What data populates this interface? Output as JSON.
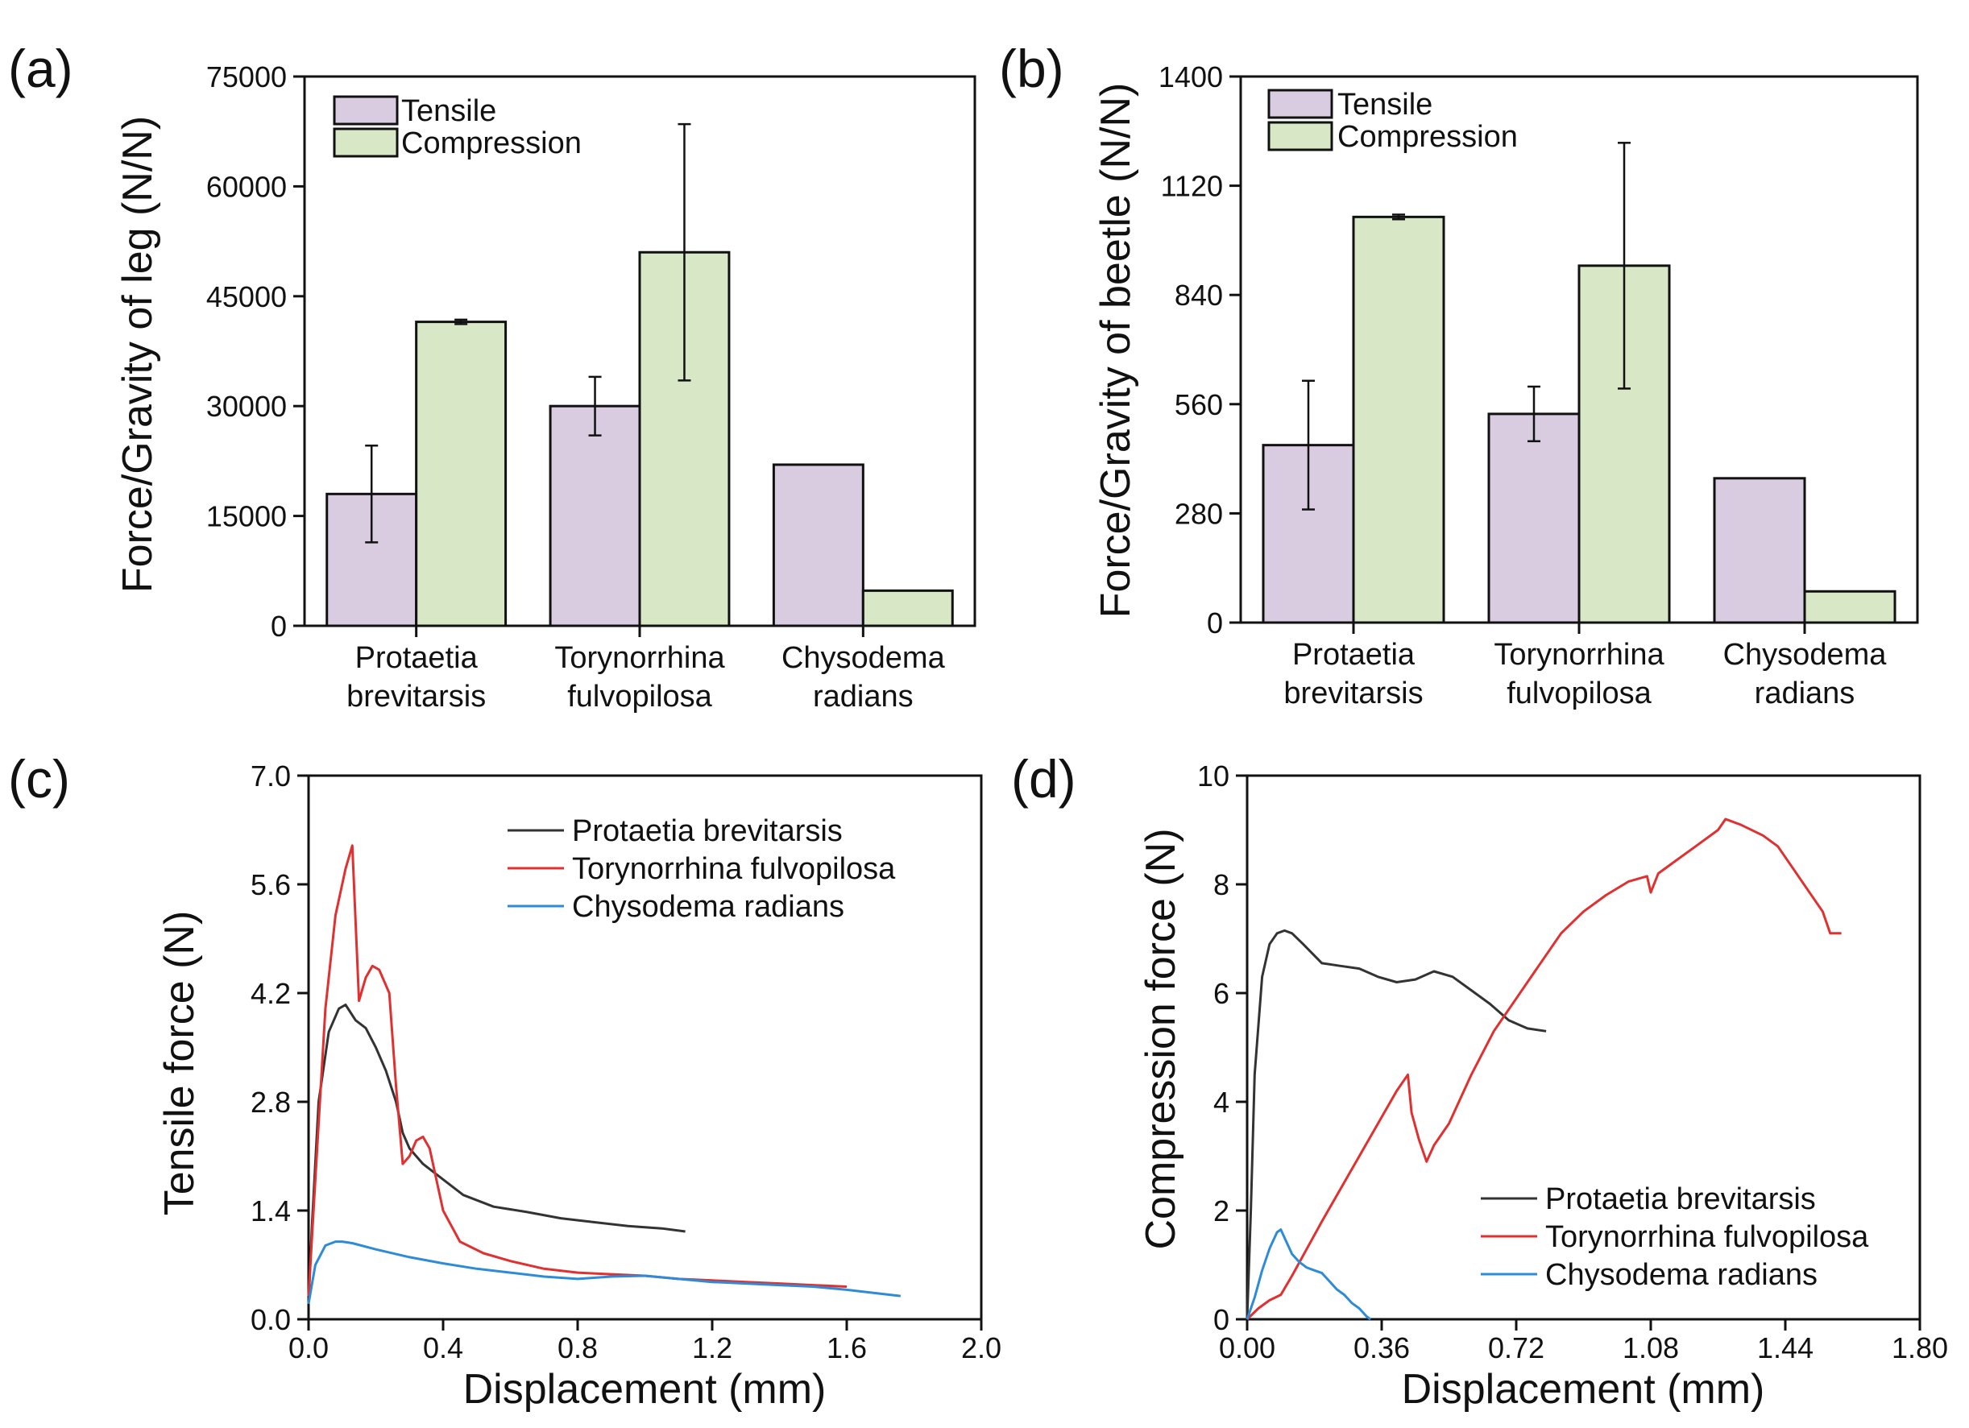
{
  "chart_data": [
    {
      "id": "a",
      "type": "bar",
      "panel_label": "(a)",
      "title": "",
      "ylabel": "Force/Gravity of leg (N/N)",
      "xlabel": "",
      "ylim": [
        0,
        75000
      ],
      "yticks": [
        0,
        15000,
        30000,
        45000,
        60000,
        75000
      ],
      "ytick_labels": [
        "0",
        "15000",
        "30000",
        "45000",
        "60000",
        "75000"
      ],
      "categories": [
        {
          "line1": "Protaetia",
          "line2": "brevitarsis"
        },
        {
          "line1": "Torynorrhina",
          "line2": "fulvopilosa"
        },
        {
          "line1": "Chysodema",
          "line2": "radians"
        }
      ],
      "legend_position": "top-left",
      "series": [
        {
          "name": "Tensile",
          "color": "#D9CBE0",
          "values": [
            18000,
            30000,
            22000
          ],
          "errors": [
            6600,
            4000,
            null
          ]
        },
        {
          "name": "Compression",
          "color": "#D8E8C6",
          "values": [
            41500,
            51000,
            4800
          ],
          "errors": [
            300,
            17500,
            null
          ]
        }
      ]
    },
    {
      "id": "b",
      "type": "bar",
      "panel_label": "(b)",
      "title": "",
      "ylabel": "Force/Gravity of beetle (N/N)",
      "xlabel": "",
      "ylim": [
        0,
        1400
      ],
      "yticks": [
        0,
        280,
        560,
        840,
        1120,
        1400
      ],
      "ytick_labels": [
        "0",
        "280",
        "560",
        "840",
        "1120",
        "1400"
      ],
      "categories": [
        {
          "line1": "Protaetia",
          "line2": "brevitarsis"
        },
        {
          "line1": "Torynorrhina",
          "line2": "fulvopilosa"
        },
        {
          "line1": "Chysodema",
          "line2": "radians"
        }
      ],
      "legend_position": "top-left",
      "series": [
        {
          "name": "Tensile",
          "color": "#D9CBE0",
          "values": [
            455,
            535,
            370
          ],
          "errors": [
            165,
            70,
            null
          ]
        },
        {
          "name": "Compression",
          "color": "#D8E8C6",
          "values": [
            1040,
            915,
            80
          ],
          "errors": [
            6,
            315,
            null
          ]
        }
      ]
    },
    {
      "id": "c",
      "type": "line",
      "panel_label": "(c)",
      "title": "",
      "xlabel": "Displacement (mm)",
      "ylabel": "Tensile force (N)",
      "xlim": [
        0,
        2.0
      ],
      "ylim": [
        0,
        7.0
      ],
      "xticks": [
        0,
        0.4,
        0.8,
        1.2,
        1.6,
        2.0
      ],
      "xtick_labels": [
        "0.0",
        "0.4",
        "0.8",
        "1.2",
        "1.6",
        "2.0"
      ],
      "yticks": [
        0,
        1.4,
        2.8,
        4.2,
        5.6,
        7.0
      ],
      "ytick_labels": [
        "0.0",
        "1.4",
        "2.8",
        "4.2",
        "5.6",
        "7.0"
      ],
      "legend_position": "top-right",
      "series": [
        {
          "name": "Protaetia brevitarsis",
          "color": "#333333",
          "x": [
            0,
            0.01,
            0.03,
            0.06,
            0.09,
            0.11,
            0.14,
            0.17,
            0.2,
            0.23,
            0.26,
            0.28,
            0.3,
            0.34,
            0.4,
            0.46,
            0.55,
            0.65,
            0.75,
            0.85,
            0.95,
            1.05,
            1.12
          ],
          "y": [
            0.2,
            1.2,
            2.8,
            3.7,
            4.0,
            4.05,
            3.85,
            3.75,
            3.5,
            3.2,
            2.8,
            2.4,
            2.2,
            2.0,
            1.8,
            1.6,
            1.45,
            1.38,
            1.3,
            1.25,
            1.2,
            1.17,
            1.13
          ]
        },
        {
          "name": "Torynorrhina fulvopilosa",
          "color": "#E03030",
          "x": [
            0,
            0.02,
            0.05,
            0.08,
            0.11,
            0.13,
            0.15,
            0.17,
            0.19,
            0.21,
            0.24,
            0.26,
            0.28,
            0.3,
            0.32,
            0.34,
            0.36,
            0.4,
            0.45,
            0.52,
            0.6,
            0.7,
            0.8,
            0.9,
            1.0,
            1.1,
            1.2,
            1.3,
            1.4,
            1.5,
            1.6
          ],
          "y": [
            0.3,
            1.8,
            4.0,
            5.2,
            5.8,
            6.1,
            4.1,
            4.4,
            4.55,
            4.5,
            4.2,
            3.0,
            2.0,
            2.1,
            2.3,
            2.35,
            2.2,
            1.4,
            1.0,
            0.85,
            0.75,
            0.65,
            0.6,
            0.58,
            0.56,
            0.52,
            0.5,
            0.48,
            0.46,
            0.44,
            0.42
          ]
        },
        {
          "name": "Chysodema radians",
          "color": "#2E8BD8",
          "x": [
            0,
            0.02,
            0.05,
            0.08,
            0.1,
            0.13,
            0.2,
            0.3,
            0.4,
            0.5,
            0.6,
            0.7,
            0.8,
            0.9,
            1.0,
            1.1,
            1.2,
            1.3,
            1.4,
            1.5,
            1.6,
            1.7,
            1.76
          ],
          "y": [
            0.2,
            0.7,
            0.95,
            1.0,
            1.0,
            0.98,
            0.9,
            0.8,
            0.72,
            0.65,
            0.6,
            0.55,
            0.52,
            0.55,
            0.56,
            0.52,
            0.48,
            0.46,
            0.44,
            0.42,
            0.38,
            0.33,
            0.3
          ]
        }
      ]
    },
    {
      "id": "d",
      "type": "line",
      "panel_label": "(d)",
      "title": "",
      "xlabel": "Displacement (mm)",
      "ylabel": "Compression force (N)",
      "xlim": [
        0,
        1.8
      ],
      "ylim": [
        0,
        10
      ],
      "xticks": [
        0,
        0.36,
        0.72,
        1.08,
        1.44,
        1.8
      ],
      "xtick_labels": [
        "0.00",
        "0.36",
        "0.72",
        "1.08",
        "1.44",
        "1.80"
      ],
      "yticks": [
        0,
        2,
        4,
        6,
        8,
        10
      ],
      "ytick_labels": [
        "0",
        "2",
        "4",
        "6",
        "8",
        "10"
      ],
      "legend_position": "bottom-right",
      "series": [
        {
          "name": "Protaetia brevitarsis",
          "color": "#333333",
          "x": [
            0,
            0.01,
            0.02,
            0.04,
            0.06,
            0.08,
            0.1,
            0.12,
            0.15,
            0.2,
            0.25,
            0.3,
            0.35,
            0.4,
            0.45,
            0.5,
            0.55,
            0.6,
            0.65,
            0.7,
            0.75,
            0.8
          ],
          "y": [
            0,
            2.0,
            4.5,
            6.3,
            6.9,
            7.1,
            7.15,
            7.1,
            6.9,
            6.55,
            6.5,
            6.45,
            6.3,
            6.2,
            6.25,
            6.4,
            6.3,
            6.05,
            5.8,
            5.5,
            5.35,
            5.3
          ]
        },
        {
          "name": "Torynorrhina fulvopilosa",
          "color": "#E03030",
          "x": [
            0,
            0.03,
            0.06,
            0.09,
            0.12,
            0.16,
            0.2,
            0.25,
            0.3,
            0.35,
            0.4,
            0.43,
            0.44,
            0.46,
            0.48,
            0.5,
            0.54,
            0.6,
            0.66,
            0.72,
            0.78,
            0.84,
            0.9,
            0.96,
            1.02,
            1.07,
            1.08,
            1.1,
            1.14,
            1.2,
            1.26,
            1.28,
            1.32,
            1.38,
            1.42,
            1.46,
            1.5,
            1.54,
            1.56,
            1.59
          ],
          "y": [
            0,
            0.2,
            0.35,
            0.45,
            0.8,
            1.3,
            1.8,
            2.4,
            3.0,
            3.6,
            4.2,
            4.5,
            3.8,
            3.3,
            2.9,
            3.2,
            3.6,
            4.5,
            5.3,
            5.9,
            6.5,
            7.1,
            7.5,
            7.8,
            8.05,
            8.15,
            7.85,
            8.2,
            8.4,
            8.7,
            9.0,
            9.2,
            9.1,
            8.9,
            8.7,
            8.3,
            7.9,
            7.5,
            7.1,
            7.1
          ]
        },
        {
          "name": "Chysodema radians",
          "color": "#2E8BD8",
          "x": [
            0,
            0.02,
            0.04,
            0.06,
            0.08,
            0.09,
            0.1,
            0.12,
            0.14,
            0.16,
            0.18,
            0.2,
            0.22,
            0.24,
            0.26,
            0.28,
            0.3,
            0.32,
            0.33
          ],
          "y": [
            0,
            0.4,
            0.9,
            1.3,
            1.6,
            1.65,
            1.5,
            1.2,
            1.05,
            0.95,
            0.9,
            0.85,
            0.7,
            0.55,
            0.45,
            0.3,
            0.2,
            0.05,
            0
          ]
        }
      ]
    }
  ]
}
